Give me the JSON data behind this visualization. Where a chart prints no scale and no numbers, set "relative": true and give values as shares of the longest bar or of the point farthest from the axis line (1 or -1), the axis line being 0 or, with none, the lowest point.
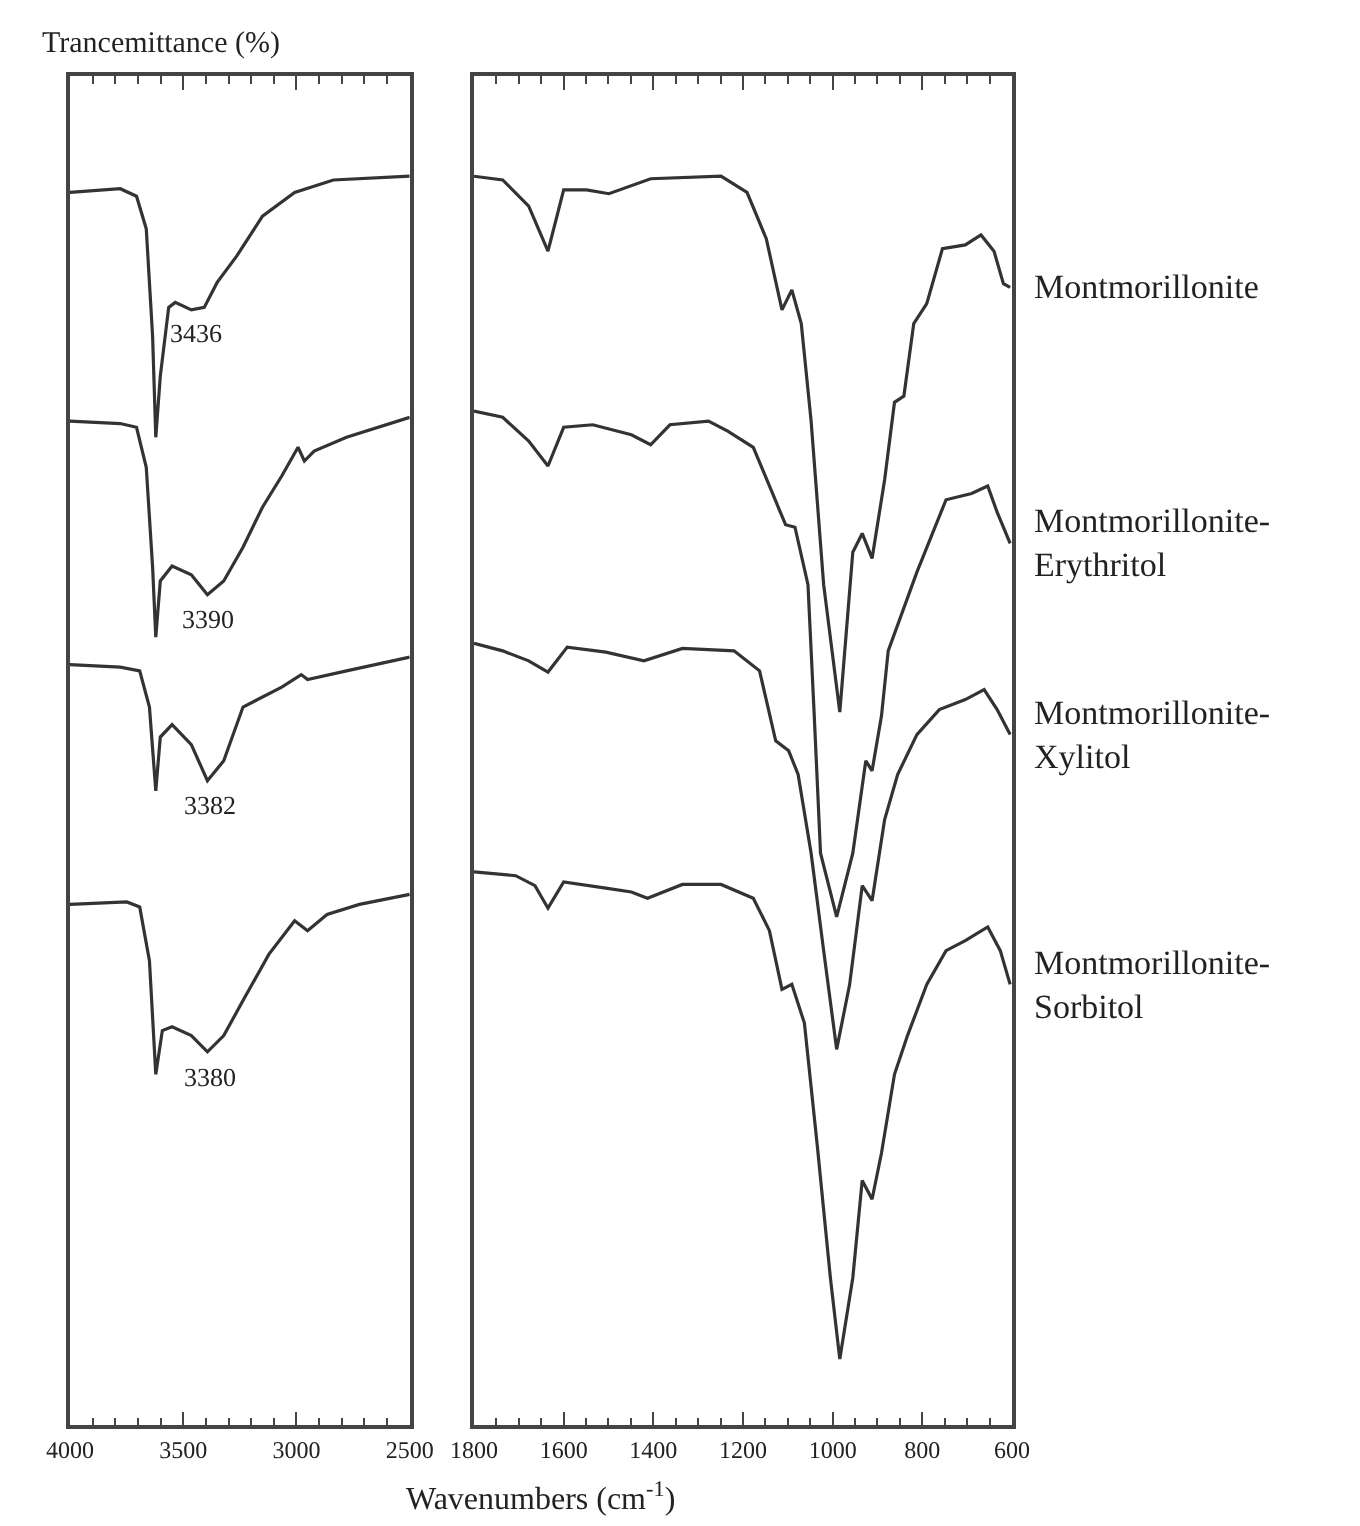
{
  "chart_data": [
    {
      "type": "line",
      "ylabel": "Trancemittance (%)",
      "relative": true,
      "tick_labels": "x",
      "xlim": [
        4000,
        2500
      ],
      "xticks": [
        4000,
        {
          "value": 3900,
          "label": null
        },
        {
          "value": 3800,
          "label": null
        },
        {
          "value": 3700,
          "label": null
        },
        {
          "value": 3600,
          "label": null
        },
        3500,
        {
          "value": 3400,
          "label": null
        },
        {
          "value": 3300,
          "label": null
        },
        {
          "value": 3200,
          "label": null
        },
        {
          "value": 3100,
          "label": null
        },
        3000,
        {
          "value": 2900,
          "label": null
        },
        {
          "value": 2800,
          "label": null
        },
        {
          "value": 2700,
          "label": null
        },
        {
          "value": 2600,
          "label": null
        },
        2500
      ],
      "series": [
        {
          "color": "#333333",
          "x": [
            4000,
            3778,
            3706,
            3663,
            3635,
            3621,
            3601,
            3564,
            3535,
            3464,
            3407,
            3350,
            3264,
            3150,
            3008,
            2837,
            2500
          ],
          "values": [
            0.987,
            0.99,
            0.984,
            0.958,
            0.872,
            0.791,
            0.84,
            0.895,
            0.899,
            0.893,
            0.895,
            0.915,
            0.936,
            0.968,
            0.987,
            0.997,
            1.0
          ]
        },
        {
          "color": "#333333",
          "x": [
            4000,
            3778,
            3706,
            3663,
            3635,
            3621,
            3601,
            3549,
            3464,
            3393,
            3321,
            3236,
            3150,
            3065,
            2993,
            2965,
            2922,
            2779,
            2500
          ],
          "values": [
            0.804,
            0.802,
            0.799,
            0.767,
            0.687,
            0.631,
            0.676,
            0.688,
            0.681,
            0.665,
            0.676,
            0.703,
            0.735,
            0.76,
            0.783,
            0.772,
            0.78,
            0.791,
            0.807
          ]
        },
        {
          "color": "#333333",
          "x": [
            4000,
            3778,
            3692,
            3649,
            3621,
            3601,
            3549,
            3464,
            3393,
            3321,
            3236,
            3065,
            2979,
            2951,
            2779,
            2500
          ],
          "values": [
            0.609,
            0.607,
            0.604,
            0.575,
            0.508,
            0.551,
            0.561,
            0.545,
            0.516,
            0.532,
            0.575,
            0.591,
            0.601,
            0.597,
            0.604,
            0.615
          ]
        },
        {
          "color": "#333333",
          "x": [
            4000,
            3749,
            3692,
            3649,
            3621,
            3592,
            3549,
            3464,
            3393,
            3321,
            3236,
            3122,
            3008,
            2951,
            2865,
            2722,
            2500
          ],
          "values": [
            0.417,
            0.419,
            0.415,
            0.372,
            0.281,
            0.316,
            0.319,
            0.312,
            0.299,
            0.312,
            0.34,
            0.377,
            0.404,
            0.396,
            0.409,
            0.417,
            0.425
          ]
        }
      ],
      "annotations": [
        {
          "text": "3436",
          "x": 3436,
          "y": 0.894
        },
        {
          "text": "3390",
          "x": 3390,
          "y": 0.665
        },
        {
          "text": "3382",
          "x": 3382,
          "y": 0.516
        },
        {
          "text": "3380",
          "x": 3380,
          "y": 0.299
        }
      ]
    },
    {
      "type": "line",
      "xlabel": "Wavenumbers (cm$^{-1}$)",
      "relative": true,
      "tick_labels": "x",
      "xlim": [
        1800,
        600
      ],
      "xticks": [
        1800,
        {
          "value": 1750,
          "label": null
        },
        {
          "value": 1700,
          "label": null
        },
        {
          "value": 1650,
          "label": null
        },
        1600,
        {
          "value": 1550,
          "label": null
        },
        {
          "value": 1500,
          "label": null
        },
        {
          "value": 1450,
          "label": null
        },
        1400,
        {
          "value": 1350,
          "label": null
        },
        {
          "value": 1300,
          "label": null
        },
        {
          "value": 1250,
          "label": null
        },
        1200,
        {
          "value": 1150,
          "label": null
        },
        {
          "value": 1100,
          "label": null
        },
        {
          "value": 1050,
          "label": null
        },
        1000,
        {
          "value": 950,
          "label": null
        },
        {
          "value": 900,
          "label": null
        },
        {
          "value": 850,
          "label": null
        },
        800,
        {
          "value": 750,
          "label": null
        },
        {
          "value": 700,
          "label": null
        },
        {
          "value": 650,
          "label": null
        },
        600
      ],
      "series": [
        {
          "name": "Montmorillonite",
          "color": "#333333",
          "x": [
            1800,
            1736,
            1678,
            1635,
            1600,
            1549,
            1499,
            1406,
            1249,
            1191,
            1148,
            1113,
            1091,
            1070,
            1048,
            1020,
            984,
            955,
            934,
            912,
            884,
            862,
            841,
            819,
            790,
            755,
            704,
            669,
            640,
            619,
            604
          ],
          "values": [
            1.0,
            0.997,
            0.976,
            0.94,
            0.989,
            0.989,
            0.986,
            0.998,
            1.0,
            0.987,
            0.95,
            0.893,
            0.909,
            0.882,
            0.804,
            0.673,
            0.571,
            0.699,
            0.714,
            0.694,
            0.757,
            0.819,
            0.824,
            0.882,
            0.898,
            0.942,
            0.945,
            0.953,
            0.94,
            0.914,
            0.911
          ]
        },
        {
          "name": "Montmorillonite-Erythritol",
          "color": "#333333",
          "x": [
            1800,
            1736,
            1678,
            1635,
            1600,
            1535,
            1449,
            1406,
            1363,
            1277,
            1234,
            1177,
            1134,
            1105,
            1084,
            1055,
            1041,
            1027,
            991,
            955,
            926,
            912,
            891,
            876,
            812,
            747,
            690,
            654,
            633,
            604
          ],
          "values": [
            0.812,
            0.807,
            0.788,
            0.768,
            0.799,
            0.801,
            0.793,
            0.785,
            0.801,
            0.804,
            0.796,
            0.783,
            0.746,
            0.721,
            0.719,
            0.673,
            0.568,
            0.458,
            0.407,
            0.458,
            0.532,
            0.524,
            0.568,
            0.62,
            0.683,
            0.741,
            0.746,
            0.752,
            0.731,
            0.706
          ]
        },
        {
          "name": "Montmorillonite-Xylitol",
          "color": "#333333",
          "x": [
            1800,
            1736,
            1678,
            1635,
            1592,
            1506,
            1421,
            1335,
            1220,
            1163,
            1127,
            1098,
            1077,
            1048,
            1020,
            991,
            962,
            934,
            912,
            884,
            855,
            812,
            762,
            704,
            662,
            633,
            604
          ],
          "values": [
            0.626,
            0.62,
            0.612,
            0.603,
            0.623,
            0.619,
            0.612,
            0.622,
            0.62,
            0.604,
            0.548,
            0.54,
            0.521,
            0.458,
            0.38,
            0.301,
            0.353,
            0.432,
            0.42,
            0.485,
            0.521,
            0.553,
            0.573,
            0.581,
            0.589,
            0.573,
            0.553
          ]
        },
        {
          "name": "Montmorillonite-Sorbitol",
          "color": "#333333",
          "x": [
            1800,
            1707,
            1664,
            1635,
            1600,
            1506,
            1449,
            1413,
            1335,
            1249,
            1177,
            1141,
            1113,
            1091,
            1063,
            1034,
            1005,
            984,
            955,
            934,
            912,
            891,
            862,
            833,
            790,
            747,
            704,
            654,
            626,
            604
          ],
          "values": [
            0.443,
            0.44,
            0.432,
            0.414,
            0.435,
            0.43,
            0.427,
            0.422,
            0.433,
            0.433,
            0.422,
            0.396,
            0.349,
            0.353,
            0.322,
            0.223,
            0.118,
            0.053,
            0.118,
            0.196,
            0.181,
            0.218,
            0.281,
            0.312,
            0.353,
            0.38,
            0.388,
            0.399,
            0.38,
            0.353
          ]
        }
      ]
    }
  ]
}
